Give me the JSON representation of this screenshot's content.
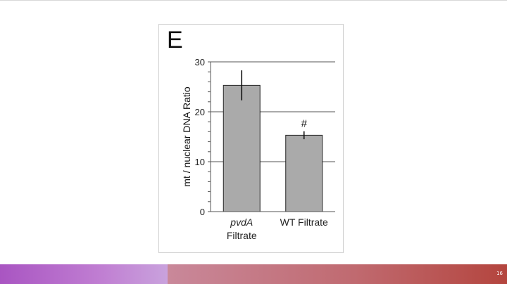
{
  "panel_label": "E",
  "slide_number": "16",
  "colors": {
    "bar_fill": "#aaaaaa",
    "bar_stroke": "#222222",
    "grid": "#555555",
    "footer_left": "#a955c2",
    "footer_right": "#b4453e"
  },
  "chart_data": {
    "type": "bar",
    "categories": [
      {
        "line1": "pvdA",
        "line2": "Filtrate",
        "italic_line1": true
      },
      {
        "line1": "WT Filtrate",
        "line2": "",
        "italic_line1": false
      }
    ],
    "values": [
      25.3,
      15.3
    ],
    "error": [
      3.0,
      0.8
    ],
    "annotations": [
      "",
      "#"
    ],
    "ylabel": "mt / nuclear DNA Ratio",
    "xlabel": "",
    "title": "",
    "ylim": [
      0,
      30
    ],
    "yticks": [
      "0",
      "10",
      "20",
      "30"
    ],
    "grid": true
  }
}
